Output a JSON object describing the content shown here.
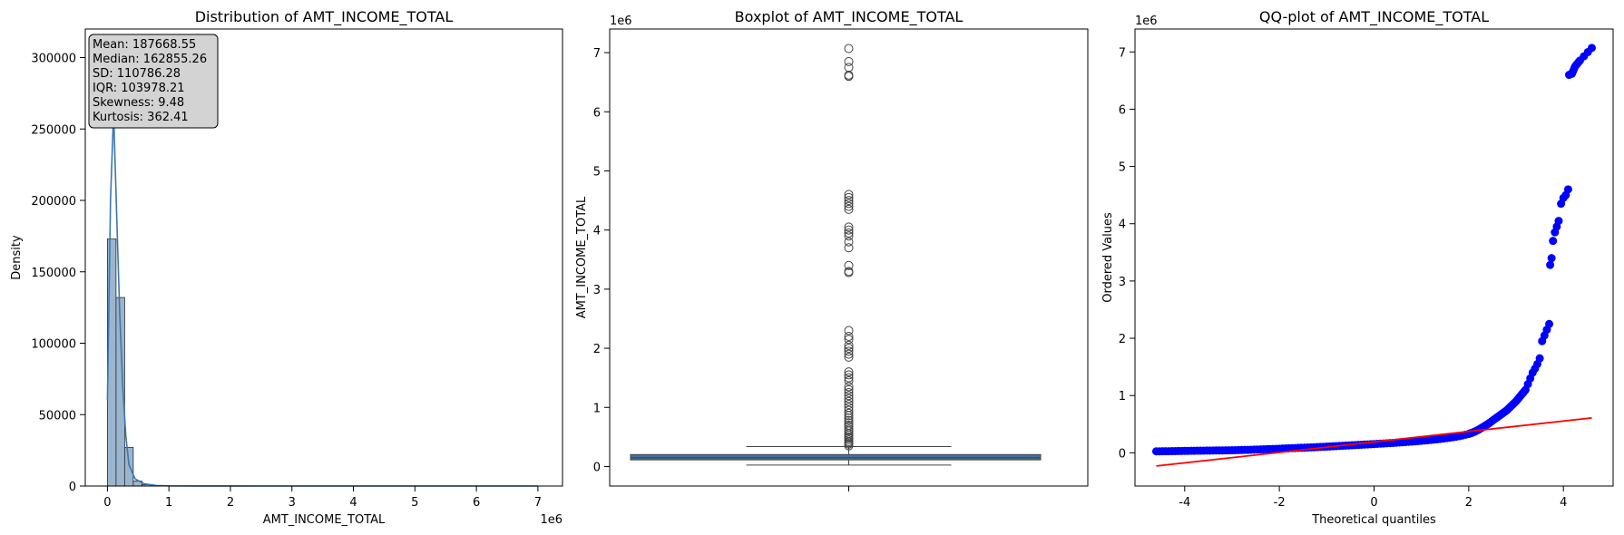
{
  "chart_data": [
    {
      "type": "histogram",
      "title": "Distribution of AMT_INCOME_TOTAL",
      "xlabel": "AMT_INCOME_TOTAL",
      "ylabel": "Density",
      "x_offset_label": "1e6",
      "xlim": [
        -0.36,
        7.4
      ],
      "ylim": [
        0,
        320000
      ],
      "x_ticks": [
        0,
        1,
        2,
        3,
        4,
        5,
        6,
        7
      ],
      "y_ticks": [
        0,
        50000,
        100000,
        150000,
        200000,
        250000,
        300000
      ],
      "bar_color": "#9bb5cf",
      "line_color": "#3b77af",
      "bins": [
        {
          "x0": 0.0,
          "x1": 0.14,
          "value": 173000
        },
        {
          "x0": 0.14,
          "x1": 0.28,
          "value": 132000
        },
        {
          "x0": 0.28,
          "x1": 0.42,
          "value": 27000
        },
        {
          "x0": 0.42,
          "x1": 0.56,
          "value": 3500
        },
        {
          "x0": 0.56,
          "x1": 0.7,
          "value": 900
        },
        {
          "x0": 0.7,
          "x1": 0.84,
          "value": 300
        },
        {
          "x0": 0.84,
          "x1": 0.98,
          "value": 150
        },
        {
          "x0": 0.98,
          "x1": 1.12,
          "value": 80
        },
        {
          "x0": 1.12,
          "x1": 1.26,
          "value": 40
        }
      ],
      "kde": [
        [
          0.0,
          60000
        ],
        [
          0.05,
          200000
        ],
        [
          0.1,
          262000
        ],
        [
          0.15,
          190000
        ],
        [
          0.2,
          120000
        ],
        [
          0.25,
          70000
        ],
        [
          0.3,
          35000
        ],
        [
          0.35,
          15000
        ],
        [
          0.45,
          5000
        ],
        [
          0.6,
          1500
        ],
        [
          0.8,
          400
        ],
        [
          1.0,
          150
        ],
        [
          1.5,
          50
        ],
        [
          2.5,
          20
        ],
        [
          4.0,
          15
        ],
        [
          5.0,
          10
        ],
        [
          6.0,
          8
        ],
        [
          7.0,
          5
        ]
      ],
      "stats_box": [
        "Mean: 187668.55",
        "Median: 162855.26",
        "SD: 110786.28",
        "IQR: 103978.21",
        "Skewness: 9.48",
        "Kurtosis: 362.41"
      ]
    },
    {
      "type": "boxplot",
      "title": "Boxplot of AMT_INCOME_TOTAL",
      "ylabel": "AMT_INCOME_TOTAL",
      "y_offset_label": "1e6",
      "ylim": [
        -0.33,
        7.4
      ],
      "y_ticks": [
        0,
        1,
        2,
        3,
        4,
        5,
        6,
        7
      ],
      "box_color": "#3f72a5",
      "q1": 0.1125,
      "median": 0.1475,
      "q3": 0.2025,
      "whisker_low": 0.0256,
      "whisker_high": 0.3375,
      "outliers": [
        0.35,
        0.38,
        0.4,
        0.42,
        0.45,
        0.48,
        0.5,
        0.53,
        0.56,
        0.6,
        0.63,
        0.67,
        0.7,
        0.74,
        0.78,
        0.82,
        0.86,
        0.9,
        0.95,
        1.0,
        1.05,
        1.1,
        1.15,
        1.2,
        1.25,
        1.3,
        1.35,
        1.45,
        1.5,
        1.55,
        1.6,
        1.85,
        1.9,
        1.95,
        2.0,
        2.05,
        2.15,
        2.2,
        2.3,
        3.28,
        3.3,
        3.4,
        3.7,
        3.8,
        3.9,
        3.95,
        4.0,
        4.05,
        4.35,
        4.4,
        4.45,
        4.5,
        4.55,
        4.6,
        6.6,
        6.62,
        6.75,
        6.85,
        7.07
      ]
    },
    {
      "type": "scatter",
      "title": "QQ-plot of AMT_INCOME_TOTAL",
      "xlabel": "Theoretical quantiles",
      "ylabel": "Ordered Values",
      "y_offset_label": "1e6",
      "xlim": [
        -5.05,
        5.05
      ],
      "ylim": [
        -0.58,
        7.4
      ],
      "x_ticks": [
        -4,
        -2,
        0,
        2,
        4
      ],
      "y_ticks": [
        0,
        1,
        2,
        3,
        4,
        5,
        6,
        7
      ],
      "point_color": "#0000ff",
      "line_color": "#ff0000",
      "fit_line": [
        [
          -4.6,
          -0.23
        ],
        [
          4.6,
          0.61
        ]
      ],
      "points": [
        [
          -4.6,
          0.026
        ],
        [
          -4.4,
          0.027
        ],
        [
          -4.2,
          0.03
        ],
        [
          -4.0,
          0.033
        ],
        [
          -3.8,
          0.036
        ],
        [
          -3.6,
          0.038
        ],
        [
          -3.4,
          0.04
        ],
        [
          -3.2,
          0.042
        ],
        [
          -3.0,
          0.045
        ],
        [
          -2.8,
          0.049
        ],
        [
          -2.6,
          0.054
        ],
        [
          -2.4,
          0.06
        ],
        [
          -2.2,
          0.066
        ],
        [
          -2.0,
          0.072
        ],
        [
          -1.8,
          0.079
        ],
        [
          -1.6,
          0.086
        ],
        [
          -1.4,
          0.093
        ],
        [
          -1.2,
          0.1
        ],
        [
          -1.0,
          0.108
        ],
        [
          -0.8,
          0.117
        ],
        [
          -0.6,
          0.126
        ],
        [
          -0.4,
          0.135
        ],
        [
          -0.2,
          0.144
        ],
        [
          0.0,
          0.153
        ],
        [
          0.2,
          0.163
        ],
        [
          0.4,
          0.173
        ],
        [
          0.6,
          0.184
        ],
        [
          0.8,
          0.196
        ],
        [
          1.0,
          0.21
        ],
        [
          1.2,
          0.225
        ],
        [
          1.4,
          0.243
        ],
        [
          1.6,
          0.264
        ],
        [
          1.8,
          0.29
        ],
        [
          2.0,
          0.33
        ],
        [
          2.1,
          0.36
        ],
        [
          2.2,
          0.4
        ],
        [
          2.3,
          0.45
        ],
        [
          2.4,
          0.5
        ],
        [
          2.5,
          0.56
        ],
        [
          2.6,
          0.62
        ],
        [
          2.7,
          0.68
        ],
        [
          2.8,
          0.74
        ],
        [
          2.9,
          0.82
        ],
        [
          3.0,
          0.9
        ],
        [
          3.1,
          1.0
        ],
        [
          3.2,
          1.1
        ],
        [
          3.25,
          1.2
        ],
        [
          3.3,
          1.3
        ],
        [
          3.35,
          1.4
        ],
        [
          3.4,
          1.47
        ],
        [
          3.45,
          1.55
        ],
        [
          3.5,
          1.65
        ],
        [
          3.55,
          1.95
        ],
        [
          3.6,
          2.05
        ],
        [
          3.65,
          2.15
        ],
        [
          3.7,
          2.25
        ],
        [
          3.72,
          3.28
        ],
        [
          3.75,
          3.4
        ],
        [
          3.78,
          3.7
        ],
        [
          3.82,
          3.85
        ],
        [
          3.86,
          3.95
        ],
        [
          3.9,
          4.05
        ],
        [
          3.95,
          4.35
        ],
        [
          4.0,
          4.45
        ],
        [
          4.05,
          4.5
        ],
        [
          4.1,
          4.6
        ],
        [
          4.12,
          6.6
        ],
        [
          4.18,
          6.62
        ],
        [
          4.25,
          6.75
        ],
        [
          4.35,
          6.85
        ],
        [
          4.6,
          7.07
        ]
      ]
    }
  ]
}
